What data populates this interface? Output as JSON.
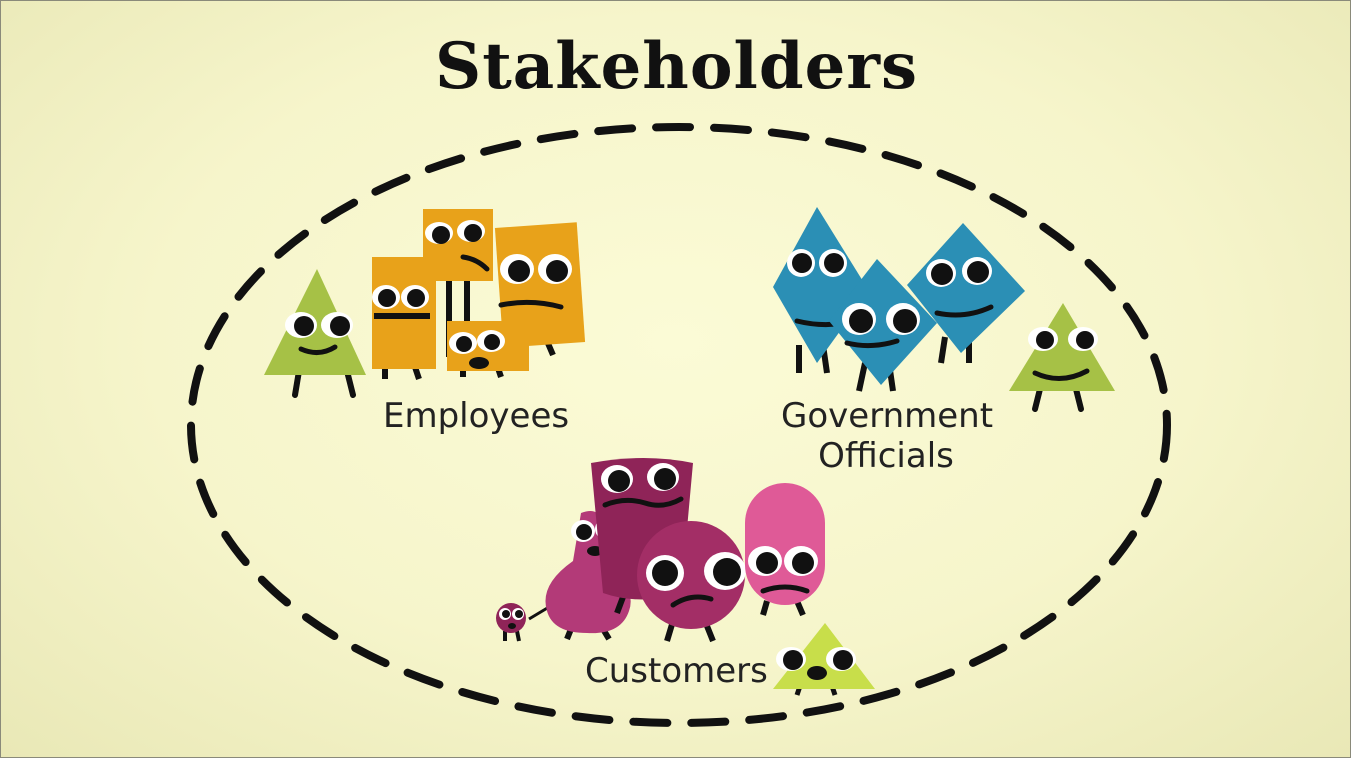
{
  "slide": {
    "title": "Stakeholders",
    "groups": [
      {
        "label": "Employees"
      },
      {
        "label_line1": "Government",
        "label_line2": "Officials"
      },
      {
        "label": "Customers"
      }
    ]
  },
  "colors": {
    "background": "#f6f5cb",
    "orange": "#e8a21a",
    "blue": "#2b8fb5",
    "green": "#a6c146",
    "magenta_dark": "#8f2458",
    "magenta": "#b33a78",
    "pink": "#df5a97",
    "outline": "#111111"
  }
}
